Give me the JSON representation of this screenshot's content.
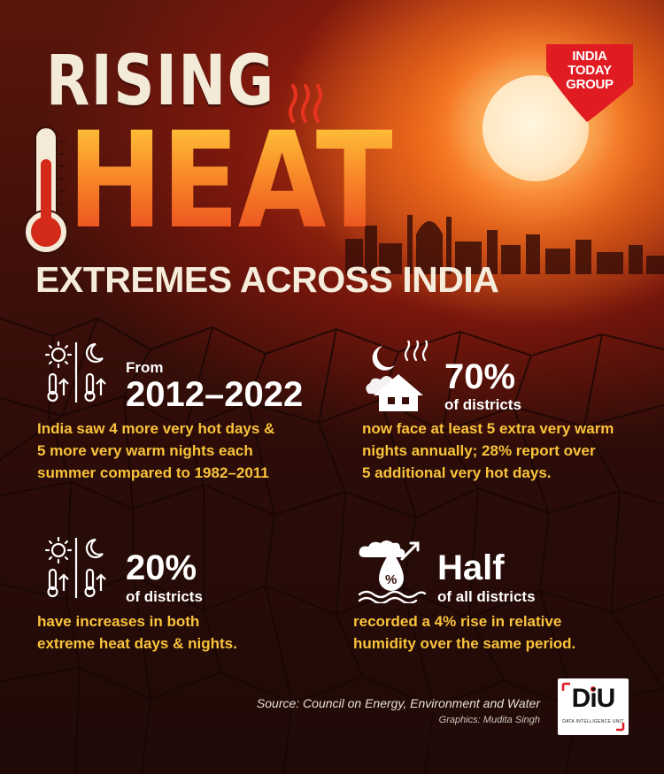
{
  "header": {
    "title_line1": "RISING",
    "title_line2": "HEAT",
    "subtitle": "EXTREMES ACROSS INDIA",
    "brand_logo": [
      "INDIA",
      "TODAY",
      "GROUP"
    ]
  },
  "stats": [
    {
      "icon": "sun-moon-thermometer-icon",
      "small": "From",
      "big": "2012–2022",
      "desc": [
        "India saw 4 more very hot days &",
        "5 more very warm nights each",
        "summer compared to 1982–2011"
      ]
    },
    {
      "icon": "night-house-heat-icon",
      "big": "70%",
      "sub": "of districts",
      "desc": [
        "now face at least 5 extra very warm",
        "nights annually; 28% report over",
        "5 additional very hot days."
      ]
    },
    {
      "icon": "sun-moon-thermometer-icon",
      "big": "20%",
      "sub": "of districts",
      "desc": [
        "have increases in both",
        "extreme heat days & nights."
      ]
    },
    {
      "icon": "humidity-drop-icon",
      "big": "Half",
      "sub": "of all districts",
      "desc": [
        "recorded a 4% rise in relative",
        "humidity over the same period."
      ]
    }
  ],
  "footer": {
    "source": "Source: Council on Energy, Environment and Water",
    "credit": "Graphics: Mudita Singh",
    "diu_mark": "DiU",
    "diu_sub": "DATA INTELLIGENCE UNIT"
  },
  "colors": {
    "accent_yellow": "#f9c33c",
    "heat_orange": "#f0672a",
    "background": "#2a0d08",
    "brand_red": "#e01b22"
  }
}
